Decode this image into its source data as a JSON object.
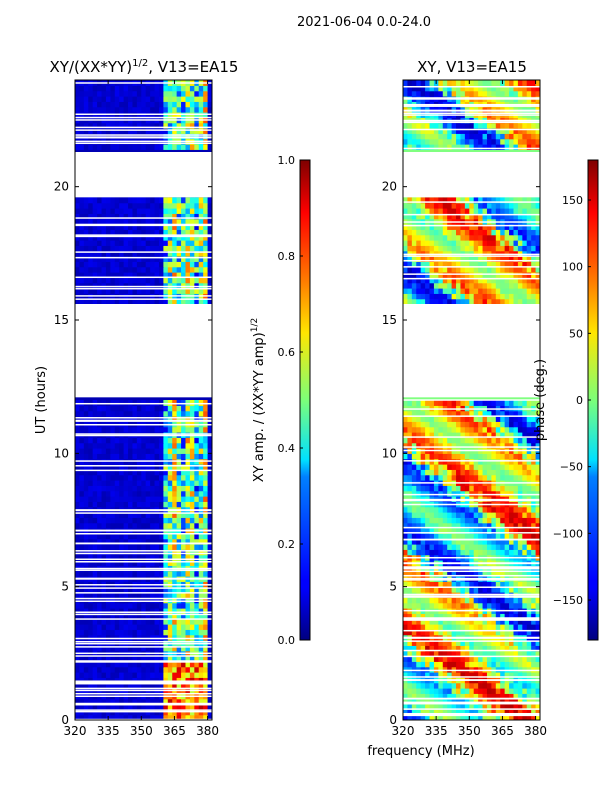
{
  "figure": {
    "suptitle": "2021-06-04 0.0-24.0",
    "xlabel": "frequency (MHz)"
  },
  "colors": {
    "axes": "#000000",
    "background": "#ffffff",
    "colormap": "jet",
    "gap": "#ffffff"
  },
  "chart_data": [
    {
      "type": "heatmap",
      "title": "XY/(XX*YY)",
      "title_superscript": "1/2",
      "title_suffix": ", V13=EA15",
      "xlabel": "",
      "ylabel": "UT (hours)",
      "xlim": [
        320,
        382
      ],
      "ylim": [
        0,
        24
      ],
      "xticks": [
        320,
        335,
        350,
        365,
        380
      ],
      "yticks": [
        0,
        5,
        10,
        15,
        20
      ],
      "colorbar": {
        "label": "XY amp. / (XX*YY amp)",
        "label_superscript": "1/2",
        "range": [
          0.0,
          1.0
        ],
        "ticks": [
          "0.0",
          "0.2",
          "0.4",
          "0.6",
          "0.8",
          "1.0"
        ],
        "tick_values": [
          0.0,
          0.2,
          0.4,
          0.6,
          0.8,
          1.0
        ]
      },
      "data_gaps_hours": [
        [
          12.1,
          15.6
        ],
        [
          19.6,
          21.3
        ]
      ],
      "bright_band_mhz": [
        360,
        380
      ],
      "typical_value_outside_band": 0.05,
      "typical_value_inside_band": 0.45
    },
    {
      "type": "heatmap",
      "title": "XY, V13=EA15",
      "xlabel": "",
      "ylabel": "",
      "xlim": [
        320,
        382
      ],
      "ylim": [
        0,
        24
      ],
      "xticks": [
        320,
        335,
        350,
        365,
        380
      ],
      "yticks": [
        0,
        5,
        10,
        15,
        20
      ],
      "colorbar": {
        "label": "phase (deg.)",
        "range": [
          -180,
          180
        ],
        "ticks": [
          "−150",
          "−100",
          "−50",
          "0",
          "50",
          "100",
          "150"
        ],
        "tick_values": [
          -150,
          -100,
          -50,
          0,
          50,
          100,
          150
        ]
      },
      "data_gaps_hours": [
        [
          12.1,
          15.6
        ],
        [
          19.6,
          21.3
        ]
      ]
    }
  ]
}
